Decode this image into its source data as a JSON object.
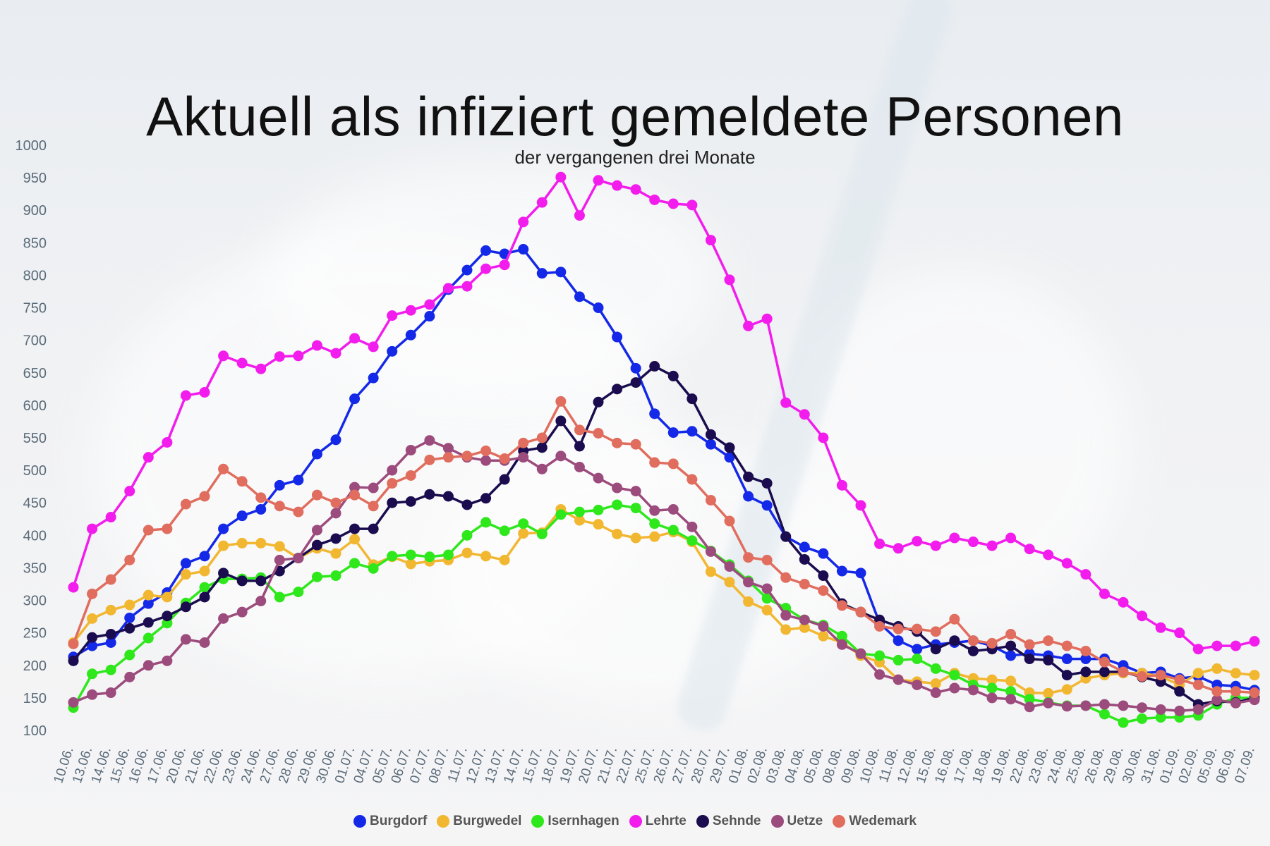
{
  "chart_data": {
    "type": "line",
    "title": "Aktuell als infiziert gemeldete Personen",
    "subtitle": "der vergangenen drei Monate",
    "ylim": [
      100,
      1000
    ],
    "yticks": [
      100,
      150,
      200,
      250,
      300,
      350,
      400,
      450,
      500,
      550,
      600,
      650,
      700,
      750,
      800,
      850,
      900,
      950,
      1000
    ],
    "x": [
      "10.06.",
      "13.06.",
      "14.06.",
      "15.06.",
      "16.06.",
      "17.06.",
      "20.06.",
      "21.06.",
      "22.06.",
      "23.06.",
      "24.06.",
      "27.06.",
      "28.06.",
      "29.06.",
      "30.06.",
      "01.07.",
      "04.07.",
      "05.07.",
      "06.07.",
      "07.07.",
      "08.07.",
      "11.07.",
      "12.07.",
      "13.07.",
      "14.07.",
      "15.07.",
      "18.07.",
      "19.07.",
      "20.07.",
      "21.07.",
      "22.07.",
      "25.07.",
      "26.07.",
      "27.07.",
      "28.07.",
      "29.07.",
      "01.08.",
      "02.08.",
      "03.08.",
      "04.08.",
      "05.08.",
      "08.08.",
      "09.08.",
      "10.08.",
      "11.08.",
      "12.08.",
      "15.08.",
      "16.08.",
      "17.08.",
      "18.08.",
      "19.08.",
      "22.08.",
      "23.08.",
      "24.08.",
      "25.08.",
      "26.08.",
      "29.08.",
      "30.08.",
      "31.08.",
      "01.09.",
      "02.09.",
      "05.09.",
      "06.09.",
      "07.09."
    ],
    "legend_position": "bottom",
    "grid": false,
    "series": [
      {
        "name": "Burgdorf",
        "color": "#1428e8",
        "values": [
          213,
          230,
          235,
          273,
          295,
          312,
          357,
          368,
          410,
          430,
          440,
          477,
          485,
          525,
          547,
          610,
          642,
          683,
          708,
          737,
          778,
          808,
          838,
          833,
          840,
          803,
          805,
          767,
          750,
          705,
          657,
          587,
          558,
          560,
          540,
          520,
          460,
          446,
          398,
          382,
          372,
          345,
          342,
          265,
          238,
          225,
          232,
          235,
          238,
          230,
          215,
          218,
          215,
          210,
          210,
          210,
          200,
          188,
          190,
          180,
          183,
          170,
          168,
          162
        ]
      },
      {
        "name": "Burgwedel",
        "color": "#f2b731",
        "values": [
          235,
          272,
          285,
          293,
          308,
          305,
          340,
          345,
          384,
          388,
          388,
          383,
          365,
          380,
          372,
          394,
          355,
          367,
          356,
          360,
          362,
          373,
          368,
          362,
          403,
          404,
          440,
          423,
          417,
          402,
          396,
          398,
          405,
          390,
          344,
          328,
          298,
          285,
          255,
          258,
          245,
          235,
          215,
          205,
          178,
          175,
          172,
          188,
          180,
          178,
          176,
          158,
          157,
          163,
          180,
          185,
          188,
          188,
          183,
          170,
          188,
          195,
          188,
          185
        ]
      },
      {
        "name": "Isernhagen",
        "color": "#2ee81c",
        "values": [
          135,
          187,
          193,
          216,
          242,
          265,
          296,
          320,
          333,
          333,
          335,
          305,
          313,
          336,
          338,
          357,
          349,
          368,
          370,
          367,
          370,
          400,
          420,
          407,
          418,
          402,
          432,
          436,
          439,
          447,
          442,
          418,
          408,
          392,
          376,
          355,
          330,
          303,
          288,
          270,
          262,
          245,
          218,
          215,
          208,
          210,
          195,
          185,
          170,
          165,
          160,
          148,
          143,
          138,
          138,
          125,
          112,
          118,
          120,
          120,
          123,
          140,
          150,
          150
        ]
      },
      {
        "name": "Lehrte",
        "color": "#f21ced",
        "values": [
          320,
          410,
          428,
          468,
          520,
          543,
          615,
          620,
          676,
          665,
          656,
          675,
          676,
          692,
          680,
          703,
          690,
          738,
          746,
          755,
          780,
          783,
          810,
          816,
          882,
          912,
          951,
          892,
          946,
          938,
          932,
          916,
          910,
          908,
          854,
          793,
          722,
          733,
          604,
          586,
          550,
          477,
          446,
          387,
          380,
          391,
          384,
          396,
          390,
          384,
          396,
          379,
          370,
          357,
          340,
          310,
          297,
          276,
          258,
          250,
          225,
          230,
          230,
          237
        ]
      },
      {
        "name": "Sehnde",
        "color": "#1a0c4e",
        "values": [
          207,
          243,
          248,
          257,
          266,
          276,
          290,
          305,
          342,
          330,
          330,
          345,
          365,
          385,
          395,
          410,
          410,
          450,
          452,
          463,
          460,
          447,
          457,
          486,
          530,
          535,
          576,
          537,
          605,
          625,
          635,
          660,
          645,
          610,
          555,
          535,
          490,
          480,
          398,
          363,
          338,
          295,
          282,
          270,
          260,
          252,
          225,
          238,
          222,
          225,
          230,
          210,
          208,
          185,
          190,
          190,
          190,
          182,
          175,
          160,
          140,
          145,
          143,
          150
        ]
      },
      {
        "name": "Uetze",
        "color": "#9c4b7d",
        "values": [
          143,
          155,
          158,
          182,
          200,
          207,
          240,
          235,
          272,
          282,
          299,
          362,
          365,
          408,
          434,
          474,
          473,
          500,
          531,
          546,
          534,
          520,
          515,
          515,
          520,
          502,
          522,
          505,
          488,
          473,
          468,
          438,
          440,
          413,
          375,
          352,
          328,
          318,
          277,
          270,
          260,
          232,
          218,
          186,
          178,
          170,
          158,
          165,
          162,
          150,
          148,
          136,
          142,
          137,
          138,
          140,
          138,
          135,
          132,
          130,
          132,
          147,
          142,
          147
        ]
      },
      {
        "name": "Wedemark",
        "color": "#e06d5e",
        "values": [
          233,
          310,
          332,
          362,
          408,
          410,
          448,
          460,
          502,
          483,
          458,
          445,
          436,
          462,
          450,
          462,
          445,
          480,
          492,
          516,
          520,
          522,
          530,
          518,
          542,
          550,
          606,
          562,
          557,
          542,
          540,
          512,
          510,
          486,
          454,
          422,
          366,
          362,
          335,
          325,
          315,
          292,
          282,
          260,
          256,
          256,
          252,
          271,
          238,
          234,
          248,
          232,
          238,
          230,
          222,
          205,
          190,
          183,
          185,
          178,
          170,
          160,
          160,
          158
        ]
      }
    ]
  }
}
